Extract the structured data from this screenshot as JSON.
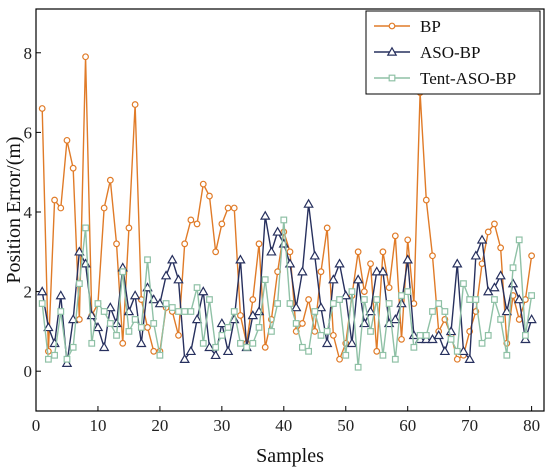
{
  "chart_data": {
    "type": "line",
    "title": "",
    "xlabel": "Samples",
    "ylabel": "Position Error/(m)",
    "xlim": [
      0,
      82
    ],
    "ylim": [
      -1,
      9.1
    ],
    "xticks": [
      0,
      10,
      20,
      30,
      40,
      50,
      60,
      70,
      80
    ],
    "yticks": [
      0,
      2,
      4,
      6,
      8
    ],
    "legend_position": "top-right",
    "grid": false,
    "series": [
      {
        "name": "BP",
        "color": "#e07b28",
        "marker": "circle",
        "x": [
          1,
          2,
          3,
          4,
          5,
          6,
          7,
          8,
          9,
          10,
          11,
          12,
          13,
          14,
          15,
          16,
          17,
          18,
          19,
          20,
          21,
          22,
          23,
          24,
          25,
          26,
          27,
          28,
          29,
          30,
          31,
          32,
          33,
          34,
          35,
          36,
          37,
          38,
          39,
          40,
          41,
          42,
          43,
          44,
          45,
          46,
          47,
          48,
          49,
          50,
          51,
          52,
          53,
          54,
          55,
          56,
          57,
          58,
          59,
          60,
          61,
          62,
          63,
          64,
          65,
          66,
          67,
          68,
          69,
          70,
          71,
          72,
          73,
          74,
          75,
          76,
          77,
          78,
          79,
          80
        ],
        "values": [
          6.6,
          0.5,
          4.3,
          4.1,
          5.8,
          5.1,
          1.3,
          7.9,
          1.4,
          1.7,
          4.1,
          4.8,
          3.2,
          0.7,
          3.6,
          6.7,
          1.8,
          1.1,
          0.5,
          0.5,
          1.6,
          1.5,
          0.9,
          3.2,
          3.8,
          3.7,
          4.7,
          4.4,
          3.0,
          3.7,
          4.1,
          4.1,
          1.4,
          0.7,
          1.8,
          3.2,
          0.6,
          1.3,
          2.5,
          3.5,
          3.0,
          1.0,
          1.2,
          1.8,
          1.0,
          2.5,
          3.6,
          0.9,
          0.3,
          0.7,
          1.9,
          3.0,
          2.0,
          2.7,
          0.5,
          3.0,
          2.1,
          3.4,
          0.8,
          3.3,
          1.7,
          7.0,
          4.3,
          2.9,
          1.0,
          1.3,
          0.9,
          0.3,
          0.4,
          1.0,
          1.5,
          2.7,
          3.5,
          3.7,
          3.1,
          0.7,
          1.9,
          1.3,
          1.8,
          2.9
        ]
      },
      {
        "name": "ASO-BP",
        "color": "#27305e",
        "marker": "triangle",
        "x": [
          1,
          2,
          3,
          4,
          5,
          6,
          7,
          8,
          9,
          10,
          11,
          12,
          13,
          14,
          15,
          16,
          17,
          18,
          19,
          20,
          21,
          22,
          23,
          24,
          25,
          26,
          27,
          28,
          29,
          30,
          31,
          32,
          33,
          34,
          35,
          36,
          37,
          38,
          39,
          40,
          41,
          42,
          43,
          44,
          45,
          46,
          47,
          48,
          49,
          50,
          51,
          52,
          53,
          54,
          55,
          56,
          57,
          58,
          59,
          60,
          61,
          62,
          63,
          64,
          65,
          66,
          67,
          68,
          69,
          70,
          71,
          72,
          73,
          74,
          75,
          76,
          77,
          78,
          79,
          80
        ],
        "values": [
          2.0,
          1.1,
          0.7,
          1.9,
          0.2,
          1.3,
          3.0,
          2.7,
          1.4,
          1.1,
          0.6,
          1.6,
          1.2,
          2.6,
          1.5,
          1.9,
          0.7,
          2.1,
          1.8,
          1.7,
          2.4,
          2.8,
          2.3,
          0.3,
          0.5,
          1.3,
          2.0,
          0.6,
          0.4,
          1.2,
          0.5,
          1.3,
          2.8,
          0.6,
          1.4,
          1.5,
          3.9,
          3.0,
          3.5,
          3.2,
          2.7,
          1.6,
          2.5,
          4.2,
          2.9,
          1.6,
          0.7,
          2.3,
          2.7,
          1.9,
          0.7,
          2.3,
          1.2,
          1.5,
          2.5,
          2.5,
          1.2,
          1.3,
          1.7,
          2.8,
          0.9,
          0.8,
          0.8,
          0.8,
          0.9,
          0.5,
          1.0,
          2.7,
          0.5,
          0.3,
          2.9,
          3.3,
          2.0,
          2.1,
          2.4,
          1.5,
          2.2,
          1.8,
          0.8,
          1.3
        ]
      },
      {
        "name": "Tent-ASO-BP",
        "color": "#8fc1a6",
        "marker": "square",
        "x": [
          1,
          2,
          3,
          4,
          5,
          6,
          7,
          8,
          9,
          10,
          11,
          12,
          13,
          14,
          15,
          16,
          17,
          18,
          19,
          20,
          21,
          22,
          23,
          24,
          25,
          26,
          27,
          28,
          29,
          30,
          31,
          32,
          33,
          34,
          35,
          36,
          37,
          38,
          39,
          40,
          41,
          42,
          43,
          44,
          45,
          46,
          47,
          48,
          49,
          50,
          51,
          52,
          53,
          54,
          55,
          56,
          57,
          58,
          59,
          60,
          61,
          62,
          63,
          64,
          65,
          66,
          67,
          68,
          69,
          70,
          71,
          72,
          73,
          74,
          75,
          76,
          77,
          78,
          79,
          80
        ],
        "values": [
          1.7,
          0.3,
          0.4,
          1.5,
          0.3,
          0.6,
          2.2,
          3.6,
          0.7,
          1.7,
          1.5,
          1.2,
          0.9,
          2.5,
          1.0,
          1.3,
          1.1,
          2.8,
          1.2,
          0.4,
          1.7,
          1.6,
          1.5,
          1.5,
          1.5,
          2.1,
          0.7,
          1.8,
          0.6,
          0.9,
          1.1,
          1.5,
          0.7,
          0.6,
          0.7,
          1.1,
          2.3,
          1.0,
          1.7,
          3.8,
          1.7,
          1.2,
          0.6,
          0.5,
          1.5,
          0.9,
          1.0,
          1.7,
          1.8,
          0.4,
          2.0,
          0.1,
          1.8,
          1.0,
          1.8,
          0.4,
          1.7,
          0.3,
          1.9,
          2.0,
          0.6,
          0.9,
          0.9,
          1.5,
          1.7,
          1.5,
          0.8,
          0.5,
          2.2,
          1.8,
          1.8,
          0.7,
          0.9,
          1.8,
          1.3,
          0.4,
          2.6,
          3.3,
          0.9,
          1.9
        ]
      }
    ]
  }
}
